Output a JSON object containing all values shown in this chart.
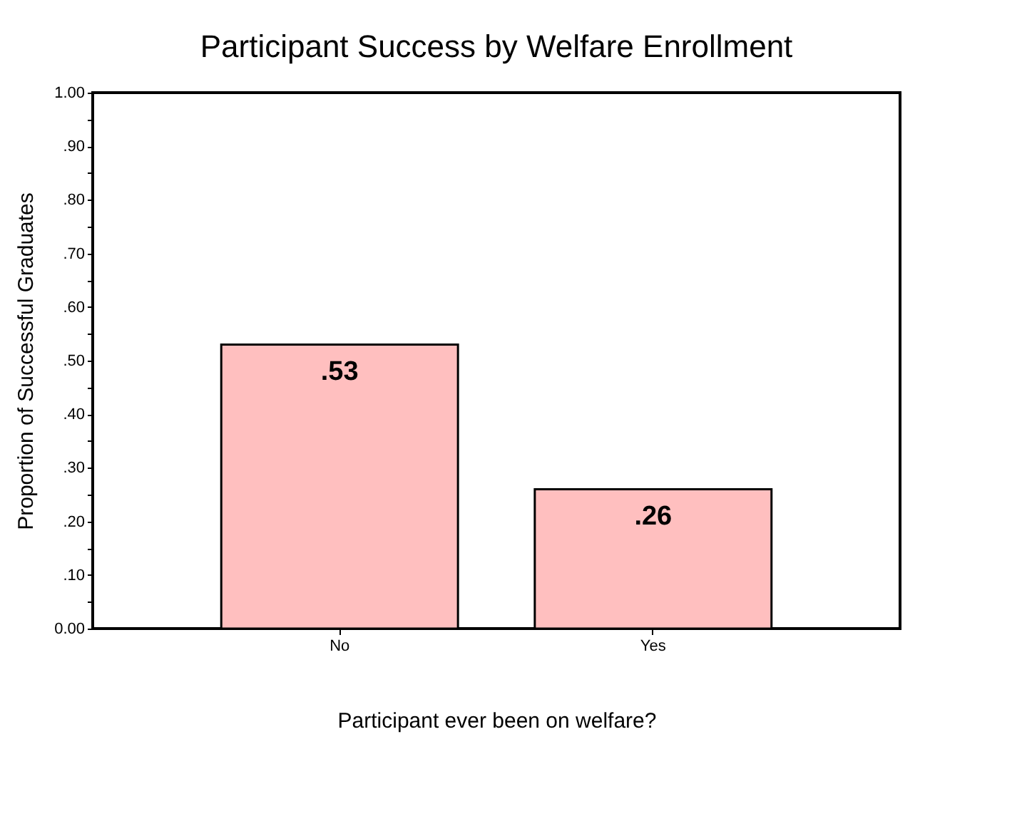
{
  "chart_data": {
    "type": "bar",
    "title": "Participant Success by Welfare Enrollment",
    "xlabel": "Participant ever been on welfare?",
    "ylabel": "Proportion of Successful Graduates",
    "categories": [
      "No",
      "Yes"
    ],
    "values": [
      0.53,
      0.26
    ],
    "value_labels": [
      ".53",
      ".26"
    ],
    "color": "#ffbfbf",
    "ylim": [
      0,
      1
    ],
    "yticks": [
      {
        "value": 0,
        "label": "0.00"
      },
      {
        "value": 0.05,
        "label": null
      },
      {
        "value": 0.1,
        "label": ".10"
      },
      {
        "value": 0.15,
        "label": null
      },
      {
        "value": 0.2,
        "label": ".20"
      },
      {
        "value": 0.25,
        "label": null
      },
      {
        "value": 0.3,
        "label": ".30"
      },
      {
        "value": 0.35,
        "label": null
      },
      {
        "value": 0.4,
        "label": ".40"
      },
      {
        "value": 0.45,
        "label": null
      },
      {
        "value": 0.5,
        "label": ".50"
      },
      {
        "value": 0.55,
        "label": null
      },
      {
        "value": 0.6,
        "label": ".60"
      },
      {
        "value": 0.65,
        "label": null
      },
      {
        "value": 0.7,
        "label": ".70"
      },
      {
        "value": 0.75,
        "label": null
      },
      {
        "value": 0.8,
        "label": ".80"
      },
      {
        "value": 0.85,
        "label": null
      },
      {
        "value": 0.9,
        "label": ".90"
      },
      {
        "value": 0.95,
        "label": null
      },
      {
        "value": 1,
        "label": "1.00"
      }
    ],
    "grid": false
  }
}
